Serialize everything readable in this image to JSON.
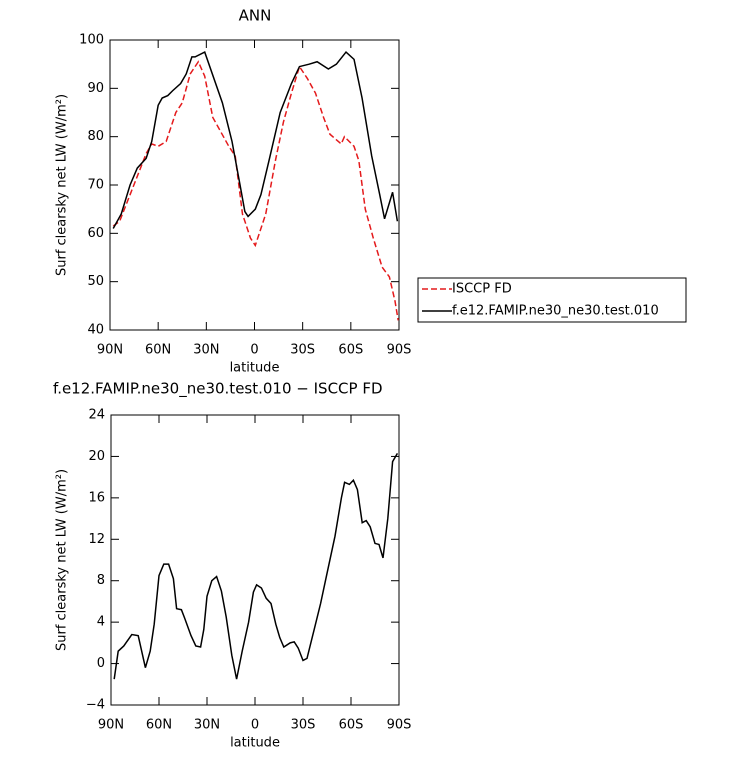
{
  "chart_data": [
    {
      "type": "line",
      "title": "ANN",
      "xlabel": "latitude",
      "ylabel": "Surf clearsky net LW (W/m²)",
      "xlim": [
        90,
        -90
      ],
      "xticks": [
        {
          "value": 90,
          "label": "90N"
        },
        {
          "value": 60,
          "label": "60N"
        },
        {
          "value": 30,
          "label": "30N"
        },
        0,
        {
          "value": -30,
          "label": "30S"
        },
        {
          "value": -60,
          "label": "60S"
        },
        {
          "value": -90,
          "label": "90S"
        }
      ],
      "ylim": [
        40,
        100
      ],
      "yticks": [
        40,
        50,
        60,
        70,
        80,
        90,
        100
      ],
      "legend": "right",
      "series": [
        {
          "name": "ISCCP FD",
          "color": "#e41a1c",
          "style": "dashed",
          "x": [
            88,
            84,
            77.5,
            71,
            67.5,
            64,
            60,
            55,
            49,
            45,
            40,
            35,
            31,
            26,
            21,
            16,
            12,
            7.5,
            2.5,
            -0.5,
            -7,
            -13,
            -18,
            -23,
            -28,
            -33,
            -38,
            -43,
            -47,
            -54,
            -56,
            -62,
            -65,
            -69,
            -74,
            -79.5,
            -84,
            -87.5,
            -89.5
          ],
          "values": [
            61.5,
            62.5,
            68,
            73.5,
            76.5,
            78.5,
            78,
            79,
            85,
            87,
            93,
            95.5,
            92.5,
            84,
            81,
            78,
            76,
            64,
            59,
            57.5,
            64,
            75,
            83,
            89,
            94.5,
            92,
            89,
            84,
            80.5,
            78.5,
            80,
            78,
            75,
            65,
            59,
            53,
            51,
            46,
            42
          ]
        },
        {
          "name": "f.e12.FAMIP.ne30_ne30.test.010",
          "color": "#000000",
          "style": "solid",
          "x": [
            88,
            83,
            77.5,
            73,
            67.5,
            64,
            60,
            57.5,
            54,
            51,
            46,
            42.5,
            39,
            37,
            31,
            20,
            14,
            9,
            6,
            4,
            -0.5,
            -4,
            -9,
            -16,
            -23,
            -28,
            -34,
            -39,
            -46,
            -51,
            -57,
            -62,
            -67,
            -73,
            -78,
            -81,
            -86,
            -89
          ],
          "values": [
            61,
            64,
            70,
            73.5,
            75.5,
            79,
            86.5,
            88,
            88.5,
            89.5,
            91,
            93,
            96.5,
            96.5,
            97.5,
            87,
            79,
            70,
            64.5,
            63.5,
            65,
            68,
            75,
            85,
            91,
            94.5,
            95,
            95.5,
            94,
            95,
            97.5,
            96,
            88,
            76,
            68,
            63,
            68.5,
            62.5
          ]
        }
      ]
    },
    {
      "type": "line",
      "title": "f.e12.FAMIP.ne30_ne30.test.010 − ISCCP FD",
      "xlabel": "latitude",
      "ylabel": "Surf clearsky net LW (W/m²)",
      "xlim": [
        90,
        -90
      ],
      "xticks": [
        {
          "value": 90,
          "label": "90N"
        },
        {
          "value": 60,
          "label": "60N"
        },
        {
          "value": 30,
          "label": "30N"
        },
        0,
        {
          "value": -30,
          "label": "30S"
        },
        {
          "value": -60,
          "label": "60S"
        },
        {
          "value": -90,
          "label": "90S"
        }
      ],
      "ylim": [
        -4,
        24
      ],
      "yticks": [
        {
          "value": -4,
          "label": "−4"
        },
        0,
        4,
        8,
        12,
        16,
        20,
        24
      ],
      "series": [
        {
          "color": "#000000",
          "style": "solid",
          "x": [
            88,
            85.5,
            82,
            77,
            73,
            68.5,
            65.5,
            63,
            60,
            57,
            54,
            51,
            49,
            46,
            44,
            40,
            37,
            34,
            32,
            30,
            27,
            24,
            21,
            18,
            14.5,
            11.5,
            8,
            4,
            1,
            -1,
            -4,
            -7,
            -10,
            -13,
            -15.5,
            -18,
            -22,
            -24.5,
            -27,
            -30,
            -32.5,
            -37,
            -41,
            -45,
            -50,
            -54,
            -56,
            -59,
            -61.5,
            -64,
            -67,
            -69.5,
            -72,
            -75,
            -77.5,
            -80,
            -83,
            -86,
            -89
          ],
          "values": [
            -1.5,
            1.2,
            1.7,
            2.8,
            2.7,
            -0.4,
            1.2,
            3.8,
            8.5,
            9.6,
            9.6,
            8.2,
            5.3,
            5.2,
            4.4,
            2.7,
            1.7,
            1.6,
            3.3,
            6.5,
            8,
            8.4,
            7,
            4.5,
            0.8,
            -1.5,
            1.2,
            4,
            6.9,
            7.6,
            7.3,
            6.3,
            5.8,
            3.8,
            2.5,
            1.6,
            2,
            2.1,
            1.5,
            0.3,
            0.5,
            3.3,
            5.8,
            8.7,
            12.3,
            16,
            17.5,
            17.3,
            17.7,
            16.8,
            13.6,
            13.8,
            13.2,
            11.6,
            11.5,
            10.2,
            14,
            19.5,
            20.3
          ]
        }
      ]
    }
  ]
}
